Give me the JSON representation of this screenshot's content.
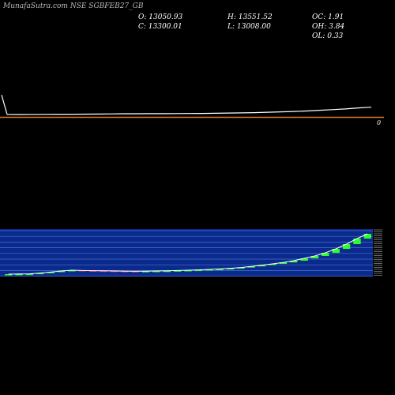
{
  "header": {
    "title": "MunafaSutra.com NSE SGBFEB27_GB",
    "open_label": "O: 13050.93",
    "high_label": "H: 13551.52",
    "oc_label": "OC: 1.91",
    "close_label": "C: 13300.01",
    "low_label": "L: 13008.00",
    "oh_label": "OH: 3.84",
    "ol_label": "OL: 0.33"
  },
  "volume_axis_label": "0",
  "colors": {
    "price_line": "#ffffff",
    "volume_baseline": "#e07a1f",
    "band_fill": "#0a2a8c",
    "band_line": "#4a6fd8",
    "up_candle": "#2aff2a",
    "down_candle": "#ff3366"
  },
  "chart_data": [
    {
      "type": "line",
      "title": "",
      "series": [
        {
          "values": [
            12950,
            6050,
            6040,
            6060,
            6080,
            6100,
            6120,
            6150,
            6180,
            6230,
            6270,
            6280,
            6300,
            6320,
            6330,
            6360,
            6400,
            6460,
            6520,
            6600,
            6680,
            6800,
            6950,
            7100,
            7250,
            7500,
            7750,
            8000,
            8350,
            8600
          ]
        }
      ]
    },
    {
      "type": "candlestick",
      "title": "",
      "candles": [
        {
          "o": 6040,
          "c": 6050
        },
        {
          "o": 6050,
          "c": 6060
        },
        {
          "o": 6060,
          "c": 6070
        },
        {
          "o": 6070,
          "c": 6120
        },
        {
          "o": 6120,
          "c": 6180
        },
        {
          "o": 6180,
          "c": 6250
        },
        {
          "o": 6250,
          "c": 6300
        },
        {
          "o": 6300,
          "c": 6280
        },
        {
          "o": 6280,
          "c": 6270
        },
        {
          "o": 6270,
          "c": 6260
        },
        {
          "o": 6260,
          "c": 6250
        },
        {
          "o": 6250,
          "c": 6240
        },
        {
          "o": 6240,
          "c": 6230
        },
        {
          "o": 6230,
          "c": 6240
        },
        {
          "o": 6240,
          "c": 6250
        },
        {
          "o": 6250,
          "c": 6260
        },
        {
          "o": 6260,
          "c": 6280
        },
        {
          "o": 6280,
          "c": 6300
        },
        {
          "o": 6300,
          "c": 6320
        },
        {
          "o": 6320,
          "c": 6350
        },
        {
          "o": 6350,
          "c": 6380
        },
        {
          "o": 6380,
          "c": 6420
        },
        {
          "o": 6420,
          "c": 6470
        },
        {
          "o": 6470,
          "c": 6540
        },
        {
          "o": 6540,
          "c": 6620
        },
        {
          "o": 6620,
          "c": 6700
        },
        {
          "o": 6700,
          "c": 6790
        },
        {
          "o": 6790,
          "c": 6900
        },
        {
          "o": 6900,
          "c": 7050
        },
        {
          "o": 7050,
          "c": 7200
        },
        {
          "o": 7200,
          "c": 7400
        },
        {
          "o": 7400,
          "c": 7650
        },
        {
          "o": 7650,
          "c": 7950
        },
        {
          "o": 7950,
          "c": 8300
        },
        {
          "o": 8300,
          "c": 8600
        }
      ]
    }
  ]
}
